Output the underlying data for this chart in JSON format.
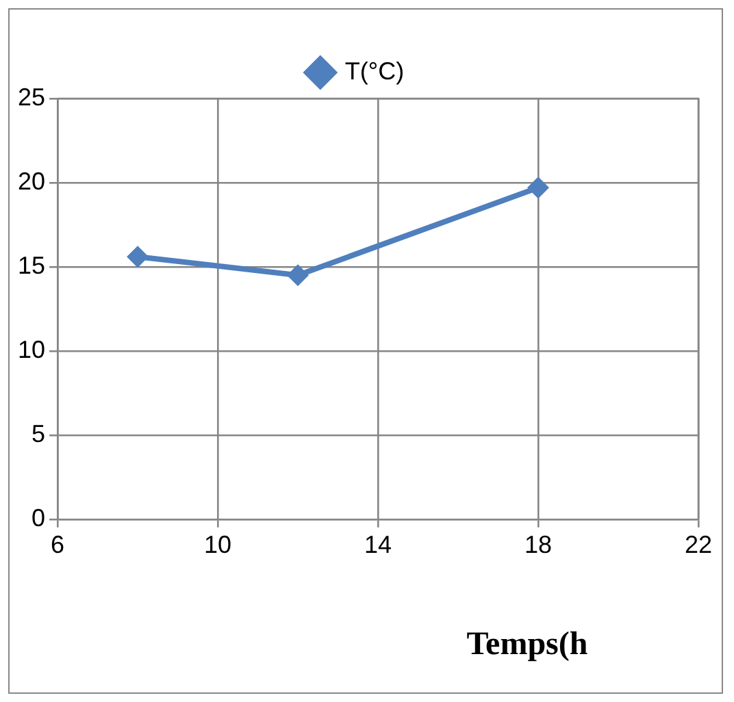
{
  "chart_data": {
    "type": "line",
    "xlabel": "Temps(h",
    "x": [
      8,
      12,
      18
    ],
    "series": [
      {
        "name": "T(°C)",
        "color": "#4f7fbd",
        "values": [
          15.6,
          14.5,
          19.7
        ]
      }
    ],
    "xlim": [
      6,
      22
    ],
    "xticks": [
      6,
      10,
      14,
      18,
      22
    ],
    "ylim": [
      0,
      25
    ],
    "yticks": [
      0,
      5,
      10,
      15,
      20,
      25
    ],
    "grid": true,
    "legend": "top",
    "marker": "diamond",
    "line_style": "solid"
  }
}
